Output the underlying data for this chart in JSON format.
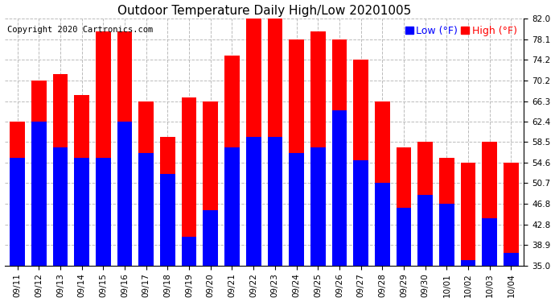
{
  "title": "Outdoor Temperature Daily High/Low 20201005",
  "copyright": "Copyright 2020 Cartronics.com",
  "dates": [
    "09/11",
    "09/12",
    "09/13",
    "09/14",
    "09/15",
    "09/16",
    "09/17",
    "09/18",
    "09/19",
    "09/20",
    "09/21",
    "09/22",
    "09/23",
    "09/24",
    "09/25",
    "09/26",
    "09/27",
    "09/28",
    "09/29",
    "09/30",
    "10/01",
    "10/02",
    "10/03",
    "10/04"
  ],
  "highs": [
    62.4,
    70.2,
    71.5,
    67.5,
    79.5,
    79.5,
    66.3,
    59.5,
    67.0,
    66.3,
    75.0,
    82.0,
    82.0,
    78.1,
    79.5,
    78.1,
    74.2,
    66.3,
    57.5,
    58.5,
    55.5,
    54.6,
    58.5,
    54.6
  ],
  "lows": [
    55.5,
    62.4,
    57.5,
    55.5,
    55.5,
    62.4,
    56.5,
    52.5,
    40.5,
    45.5,
    57.5,
    59.5,
    59.5,
    56.5,
    57.5,
    64.5,
    55.0,
    50.7,
    46.0,
    48.5,
    46.8,
    36.0,
    44.0,
    37.5
  ],
  "ylim_min": 35.0,
  "ylim_max": 82.0,
  "yticks": [
    35.0,
    38.9,
    42.8,
    46.8,
    50.7,
    54.6,
    58.5,
    62.4,
    66.3,
    70.2,
    74.2,
    78.1,
    82.0
  ],
  "high_color": "#ff0000",
  "low_color": "#0000ff",
  "bg_color": "#ffffff",
  "grid_color": "#bbbbbb",
  "title_fontsize": 11,
  "copyright_fontsize": 7.5,
  "legend_fontsize": 9,
  "tick_fontsize": 7.5
}
